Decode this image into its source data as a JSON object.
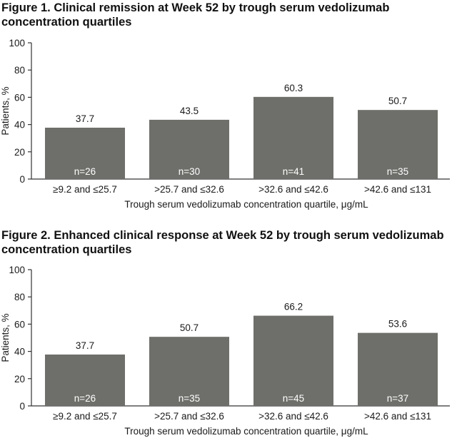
{
  "chart_data": [
    {
      "type": "bar",
      "title": "Figure 1. Clinical remission at Week 52 by trough serum vedolizumab concentration quartiles",
      "xlabel": "Trough serum vedolizumab concentration quartile, μg/mL",
      "ylabel": "Patients, %",
      "ylim": [
        0,
        100
      ],
      "yticks": [
        "0",
        "20",
        "40",
        "60",
        "80",
        "100"
      ],
      "grid": false,
      "categories": [
        "≥9.2 and ≤25.7",
        ">25.7 and ≤32.6",
        ">32.6 and ≤42.6",
        ">42.6 and ≤131"
      ],
      "values": [
        37.7,
        43.5,
        60.3,
        50.7
      ],
      "value_labels": [
        "37.7",
        "43.5",
        "60.3",
        "50.7"
      ],
      "n_labels": [
        "n=26",
        "n=30",
        "n=41",
        "n=35"
      ],
      "bar_color": "#6e6e6a"
    },
    {
      "type": "bar",
      "title": "Figure 2. Enhanced clinical response at Week 52 by trough serum vedolizumab concentration quartiles",
      "xlabel": "Trough serum vedolizumab concentration quartile, μg/mL",
      "ylabel": "Patients, %",
      "ylim": [
        0,
        100
      ],
      "yticks": [
        "0",
        "20",
        "40",
        "60",
        "80",
        "100"
      ],
      "grid": false,
      "categories": [
        "≥9.2 and ≤25.7",
        ">25.7 and ≤32.6",
        ">32.6 and ≤42.6",
        ">42.6 and ≤131"
      ],
      "values": [
        37.7,
        50.7,
        66.2,
        53.6
      ],
      "value_labels": [
        "37.7",
        "50.7",
        "66.2",
        "53.6"
      ],
      "n_labels": [
        "n=26",
        "n=35",
        "n=45",
        "n=37"
      ],
      "bar_color": "#6e6e6a"
    }
  ]
}
